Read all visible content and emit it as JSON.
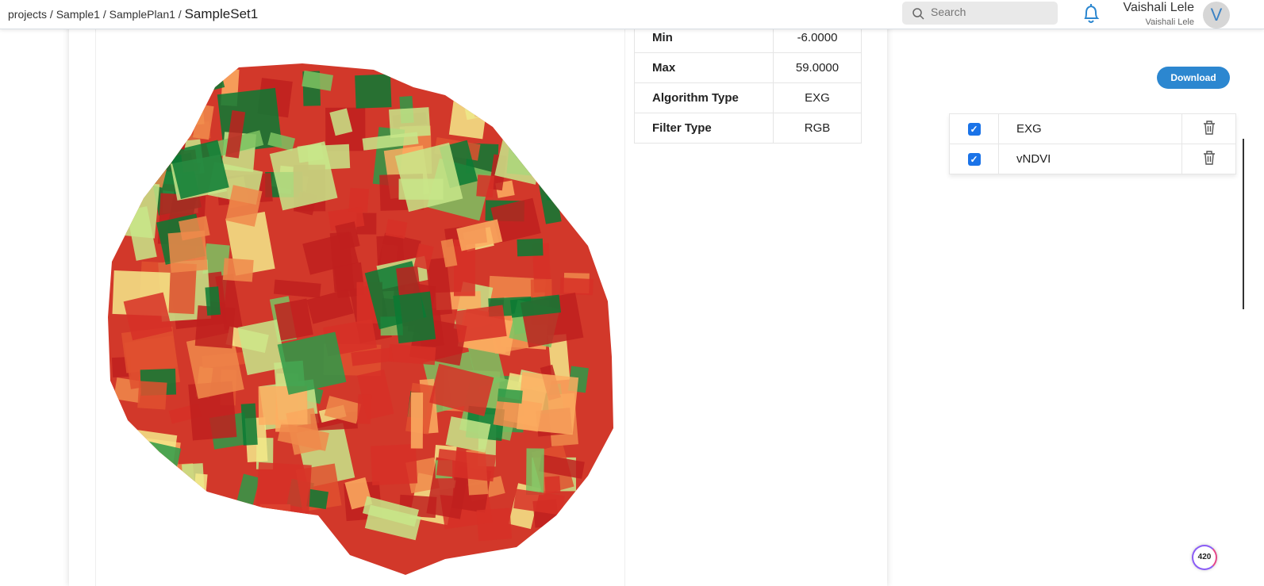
{
  "breadcrumb": {
    "items": [
      "projects",
      "Sample1",
      "SamplePlan1"
    ],
    "current": "SampleSet1"
  },
  "header": {
    "search_placeholder": "Search",
    "user_name": "Vaishali Lele",
    "user_sub": "Vaishali Lele",
    "avatar_letter": "V"
  },
  "info": [
    {
      "key": "Min",
      "value": "-6.0000"
    },
    {
      "key": "Max",
      "value": "59.0000"
    },
    {
      "key": "Algorithm Type",
      "value": "EXG"
    },
    {
      "key": "Filter Type",
      "value": "RGB"
    }
  ],
  "download_label": "Download",
  "layers": [
    {
      "name": "EXG",
      "checked": true
    },
    {
      "name": "vNDVI",
      "checked": true
    }
  ],
  "badge_count": "420",
  "colors": {
    "accent": "#2c87d0",
    "checkbox": "#1a73e8",
    "map_low": "#c0201f",
    "map_mid": "#f5e98a",
    "map_high": "#0a7a34"
  }
}
